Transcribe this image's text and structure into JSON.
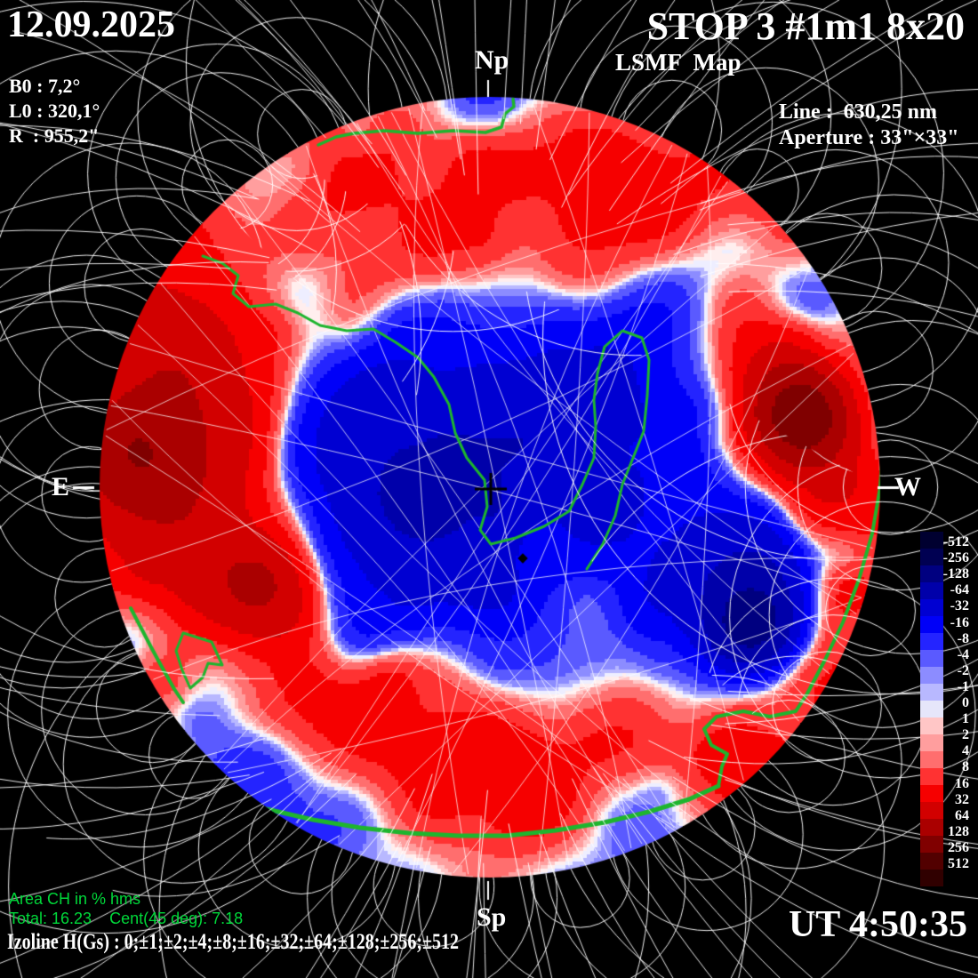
{
  "header": {
    "date": "12.09.2025",
    "b0": "B0 : 7,2°",
    "l0": "L0 : 320,1°",
    "radius": "R  : 955,2\"",
    "title": "STOP 3 #1m1 8x20",
    "subtitle": "LSMF  Map",
    "line": "Line :  630,25 nm",
    "aperture": "Aperture : 33\"×33\""
  },
  "orientation": {
    "north": "Np",
    "south": "Sp",
    "east": "E",
    "west": "W"
  },
  "footer": {
    "area_ch": "Area CH in % hms",
    "totals": "Total: 16.23    Cent(45 deg): 7.18",
    "izoline": "Izoline H(Gs) : 0;±1;±2;±4;±8;±16;±32;±64;±128;±256;±512",
    "ut": "UT 4:50:35"
  },
  "colorbar": {
    "labels": [
      "-512",
      "-256",
      "-128",
      "-64",
      "-32",
      "-16",
      "-8",
      "-4",
      "-2",
      "-1",
      "0",
      "1",
      "2",
      "4",
      "8",
      "16",
      "32",
      "64",
      "128",
      "256",
      "512"
    ],
    "colors": [
      "#000030",
      "#000052",
      "#000080",
      "#0000aa",
      "#0000d2",
      "#0000f8",
      "#2424ff",
      "#5a5aff",
      "#8c8cff",
      "#b8b8ff",
      "#e6e6fa",
      "#ffc6c6",
      "#ff9e9e",
      "#ff6e6e",
      "#ff3232",
      "#f60000",
      "#d20000",
      "#aa0000",
      "#800000",
      "#520000",
      "#300000"
    ]
  },
  "map_palette": {
    "thresholds": [
      1,
      2,
      4,
      8,
      16,
      32,
      64,
      128,
      256,
      512
    ],
    "neg": [
      "#eeeeff",
      "#b8b8ff",
      "#8c8cff",
      "#5a5aff",
      "#2424ff",
      "#0000f8",
      "#0000d2",
      "#0000aa",
      "#000080",
      "#000052",
      "#000030"
    ],
    "pos": [
      "#ffeeee",
      "#ffc6c6",
      "#ff9e9e",
      "#ff6e6e",
      "#ff3232",
      "#f60000",
      "#d20000",
      "#aa0000",
      "#800000",
      "#520000",
      "#300000"
    ]
  },
  "colors": {
    "background": "#000000",
    "text": "#ffffff",
    "green_text": "#00d93a",
    "contour_green": "#1eb52e",
    "field_line": "#ffffff",
    "cross": "#000000"
  },
  "chart_data": {
    "type": "heatmap",
    "title": "LSMF Map",
    "instrument": "STOP 3 #1m1 8x20",
    "date": "12.09.2025",
    "time_ut": "4:50:35",
    "spectral_line_nm": "630,25",
    "aperture_arcsec": "33\"×33\"",
    "b0_deg": "7,2",
    "l0_deg": "320,1",
    "solar_radius_arcsec": "955,2",
    "colorbar_levels_gauss": [
      -512,
      -256,
      -128,
      -64,
      -32,
      -16,
      -8,
      -4,
      -2,
      -1,
      0,
      1,
      2,
      4,
      8,
      16,
      32,
      64,
      128,
      256,
      512
    ],
    "isoline_levels_gauss": "0;±1;±2;±4;±8;±16;±32;±64;±128;±256;±512",
    "area_ch_percent_total": 16.23,
    "area_ch_percent_cent45deg": 7.18,
    "orientation_labels": [
      "Np",
      "Sp",
      "E",
      "W"
    ],
    "positive_polarity_color": "red",
    "negative_polarity_color": "blue",
    "legend_position": "right"
  }
}
